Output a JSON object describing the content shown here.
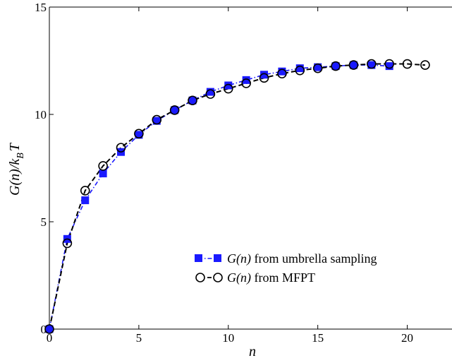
{
  "chart_data": {
    "type": "scatter",
    "title": "",
    "xlabel": "n",
    "ylabel_main": "G(n)/k",
    "ylabel_sub": "B",
    "ylabel_tail": "T",
    "xlim": [
      0,
      22.5
    ],
    "ylim": [
      0,
      15
    ],
    "xticks": [
      0,
      5,
      10,
      15,
      20
    ],
    "yticks": [
      0,
      5,
      10,
      15
    ],
    "grid": false,
    "legend_position": "lower-right",
    "series": [
      {
        "name_italic": "G(n)",
        "name_rest": " from umbrella sampling",
        "marker": "square",
        "color": "#1a1aff",
        "line_style": "dash-dot",
        "x": [
          0,
          1,
          2,
          3,
          4,
          5,
          6,
          7,
          8,
          9,
          10,
          11,
          12,
          13,
          14,
          15,
          16,
          17,
          18,
          19
        ],
        "y": [
          0.0,
          4.2,
          6.0,
          7.25,
          8.25,
          9.05,
          9.7,
          10.2,
          10.65,
          11.05,
          11.35,
          11.6,
          11.85,
          12.0,
          12.15,
          12.2,
          12.25,
          12.3,
          12.3,
          12.25
        ]
      },
      {
        "name_italic": "G(n)",
        "name_rest": " from MFPT",
        "marker": "circle",
        "color": "#000000",
        "line_style": "dashed",
        "x": [
          0,
          1,
          2,
          3,
          4,
          5,
          6,
          7,
          8,
          9,
          10,
          11,
          12,
          13,
          14,
          15,
          16,
          17,
          18,
          19,
          20,
          21
        ],
        "y": [
          0.0,
          4.0,
          6.45,
          7.6,
          8.45,
          9.1,
          9.75,
          10.2,
          10.65,
          10.95,
          11.2,
          11.45,
          11.7,
          11.9,
          12.05,
          12.15,
          12.25,
          12.3,
          12.35,
          12.35,
          12.35,
          12.3
        ]
      }
    ]
  }
}
